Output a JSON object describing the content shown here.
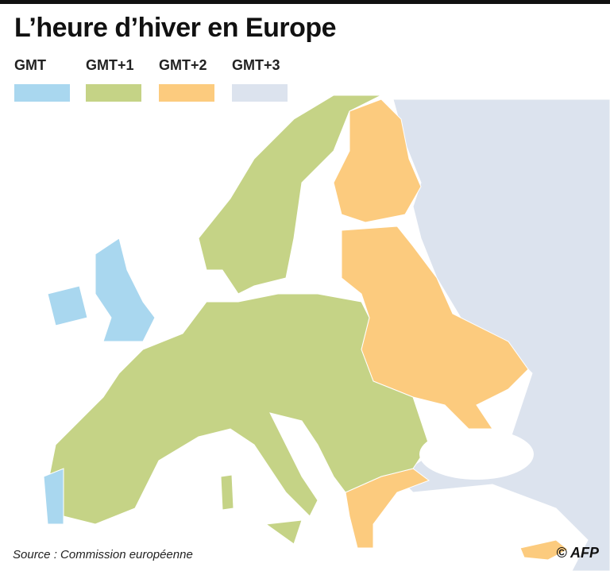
{
  "header": {
    "title": "L’heure d’hiver en Europe"
  },
  "legend": [
    {
      "label": "GMT",
      "color": "#a9d7ef"
    },
    {
      "label": "GMT+1",
      "color": "#c5d386"
    },
    {
      "label": "GMT+2",
      "color": "#fccb7e"
    },
    {
      "label": "GMT+3",
      "color": "#dce3ee"
    }
  ],
  "source": "Source : Commission européenne",
  "credit": "© AFP"
}
